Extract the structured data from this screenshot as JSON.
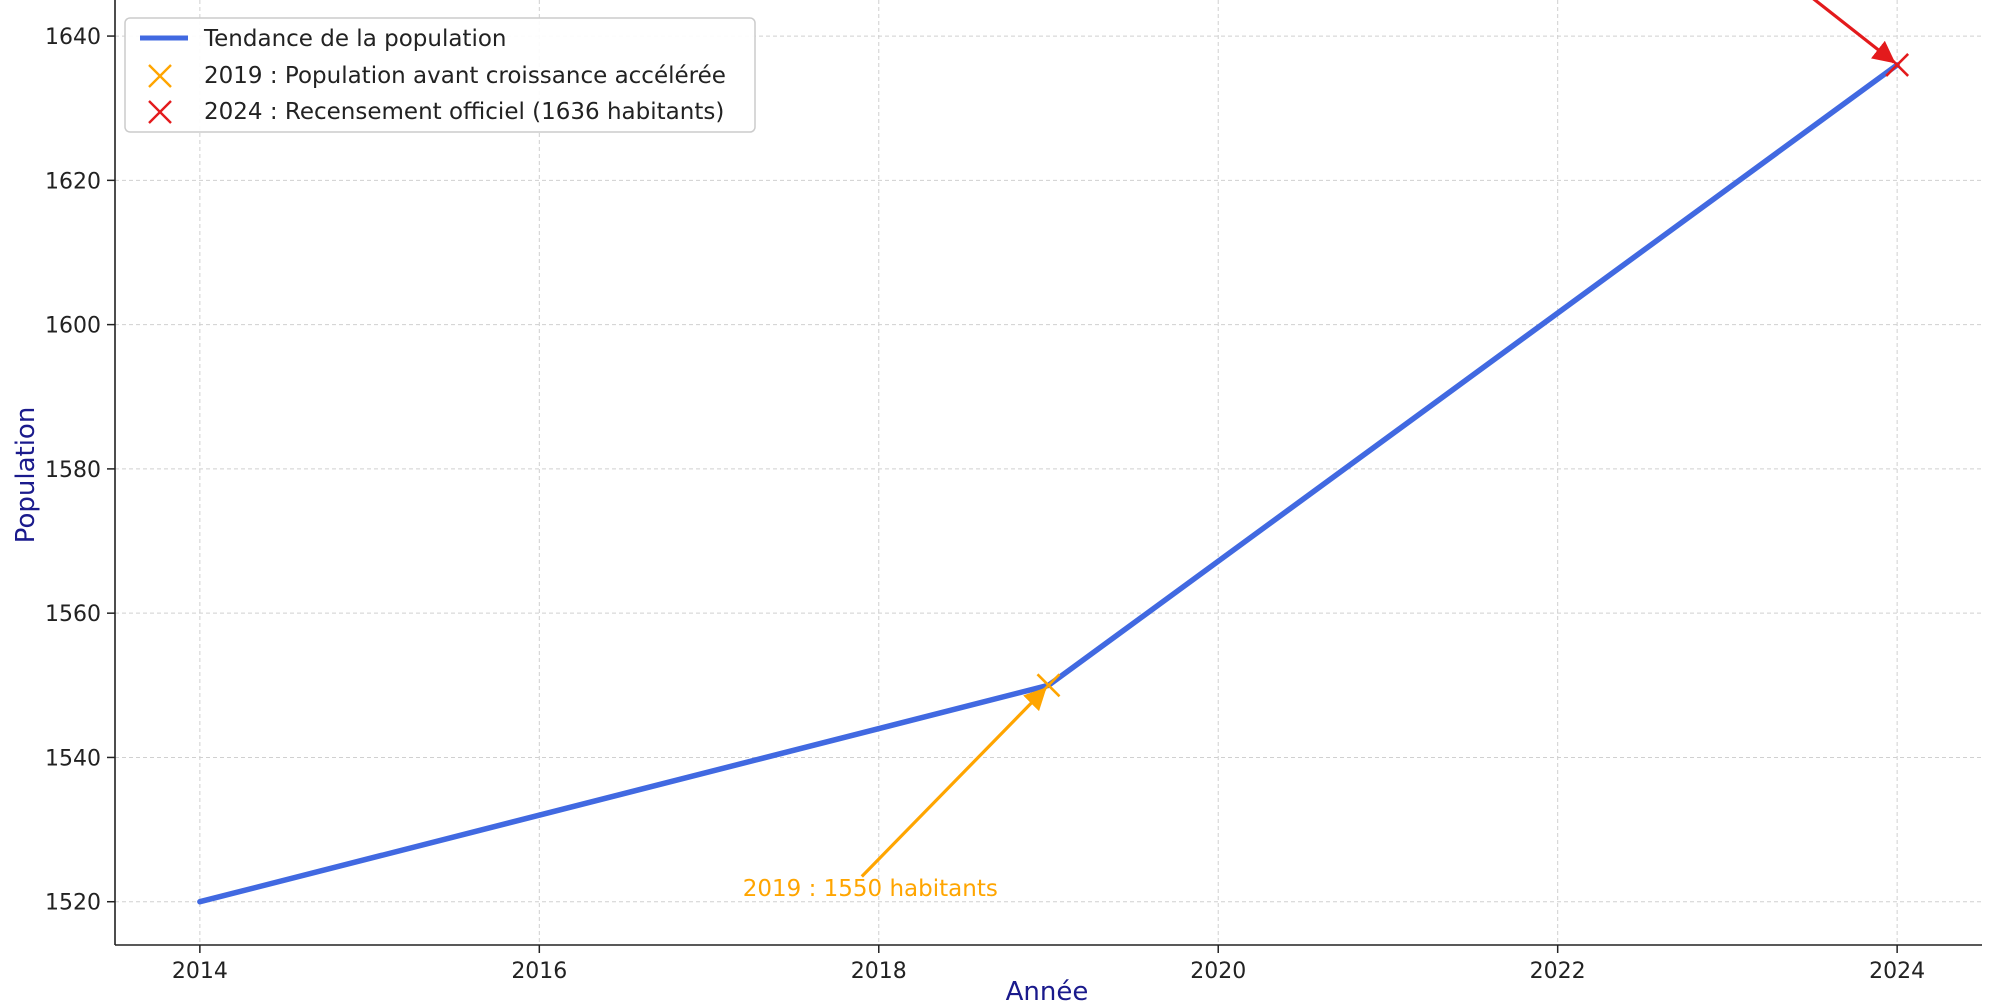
{
  "chart_data": {
    "type": "line",
    "xlabel": "Année",
    "ylabel": "Population",
    "xlim": [
      2013.5,
      2024.5
    ],
    "ylim": [
      1514,
      1645
    ],
    "x_ticks": [
      2014,
      2016,
      2018,
      2020,
      2022,
      2024
    ],
    "y_ticks": [
      1520,
      1540,
      1560,
      1580,
      1600,
      1620,
      1640
    ],
    "grid": true,
    "legend_position": "top-left",
    "series": [
      {
        "name": "Tendance de la population",
        "color": "#4169e1",
        "x": [
          2014,
          2019,
          2024
        ],
        "y": [
          1520,
          1550,
          1636
        ]
      }
    ],
    "markers": [
      {
        "label": "2019 : Population avant croissance accélérée",
        "x": 2019,
        "y": 1550,
        "color": "#ffa500",
        "shape": "x"
      },
      {
        "label": "2024 : Recensement officiel (1636 habitants)",
        "x": 2024,
        "y": 1636,
        "color": "#e31a1c",
        "shape": "x"
      }
    ],
    "annotations": [
      {
        "text": "2019 : 1550 habitants",
        "text_x": 2017.95,
        "text_y": 1520.8,
        "arrow_from_x": 2017.9,
        "arrow_from_y": 1523.5,
        "arrow_to_x": 2018.98,
        "arrow_to_y": 1549.5,
        "color": "#ffa500"
      },
      {
        "text": "",
        "arrow_from_x": 2023.3,
        "arrow_from_y": 1649,
        "arrow_to_x": 2023.98,
        "arrow_to_y": 1636.4,
        "color": "#e31a1c"
      }
    ]
  }
}
